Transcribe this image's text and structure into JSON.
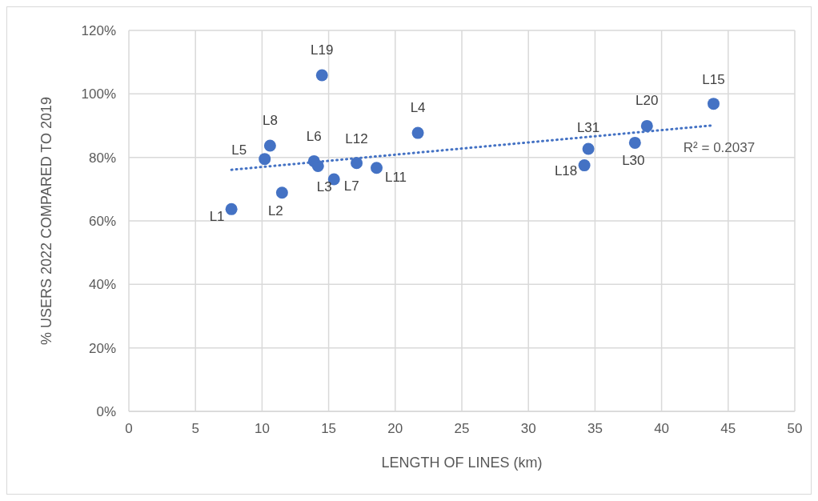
{
  "chart_data": {
    "type": "scatter",
    "xlabel": "LENGTH OF LINES (km)",
    "ylabel": "% USERS 2022 COMPARED TO 2019",
    "xlim": [
      0,
      50
    ],
    "xticks": [
      0,
      5,
      10,
      15,
      20,
      25,
      30,
      35,
      40,
      45,
      50
    ],
    "ylim": [
      0,
      120
    ],
    "yticks": [
      {
        "value": 0,
        "label": "0%"
      },
      {
        "value": 20,
        "label": "20%"
      },
      {
        "value": 40,
        "label": "40%"
      },
      {
        "value": 60,
        "label": "60%"
      },
      {
        "value": 80,
        "label": "80%"
      },
      {
        "value": 100,
        "label": "100%"
      },
      {
        "value": 120,
        "label": "120%"
      }
    ],
    "grid": true,
    "series": [
      {
        "color": "#4472c4",
        "marker": "circle",
        "x": [
          7.7,
          11.5,
          10.2,
          10.6,
          13.9,
          14.2,
          15.4,
          17.1,
          18.6,
          21.7,
          14.5,
          34.2,
          34.5,
          38.0,
          38.9,
          43.9
        ],
        "values": [
          63.7,
          68.9,
          79.5,
          83.7,
          78.8,
          77.3,
          73.1,
          78.2,
          76.7,
          87.7,
          105.9,
          77.5,
          82.7,
          84.6,
          89.9,
          96.9
        ]
      },
      {
        "type": "line",
        "color": "#4472c4",
        "marker": "none",
        "line_style": "dotted",
        "x": [
          7.7,
          43.9
        ],
        "values": [
          76.1,
          90.1
        ]
      }
    ],
    "annotations": [
      {
        "text": "L1",
        "x": 7.7,
        "y": 63.7
      },
      {
        "text": "L2",
        "x": 11.5,
        "y": 68.9
      },
      {
        "text": "L5",
        "x": 10.2,
        "y": 79.5
      },
      {
        "text": "L8",
        "x": 10.6,
        "y": 83.7
      },
      {
        "text": "L6",
        "x": 13.9,
        "y": 78.8
      },
      {
        "text": "L3",
        "x": 14.2,
        "y": 77.3
      },
      {
        "text": "L7",
        "x": 15.4,
        "y": 73.1
      },
      {
        "text": "L12",
        "x": 17.1,
        "y": 78.2
      },
      {
        "text": "L11",
        "x": 18.6,
        "y": 76.7
      },
      {
        "text": "L4",
        "x": 21.7,
        "y": 87.7
      },
      {
        "text": "L19",
        "x": 14.5,
        "y": 105.9
      },
      {
        "text": "L18",
        "x": 34.2,
        "y": 77.5
      },
      {
        "text": "L31",
        "x": 34.5,
        "y": 82.7
      },
      {
        "text": "L30",
        "x": 38.0,
        "y": 84.6
      },
      {
        "text": "L20",
        "x": 38.9,
        "y": 89.9
      },
      {
        "text": "L15",
        "x": 43.9,
        "y": 96.9
      },
      "R² = 0.2037"
    ]
  }
}
